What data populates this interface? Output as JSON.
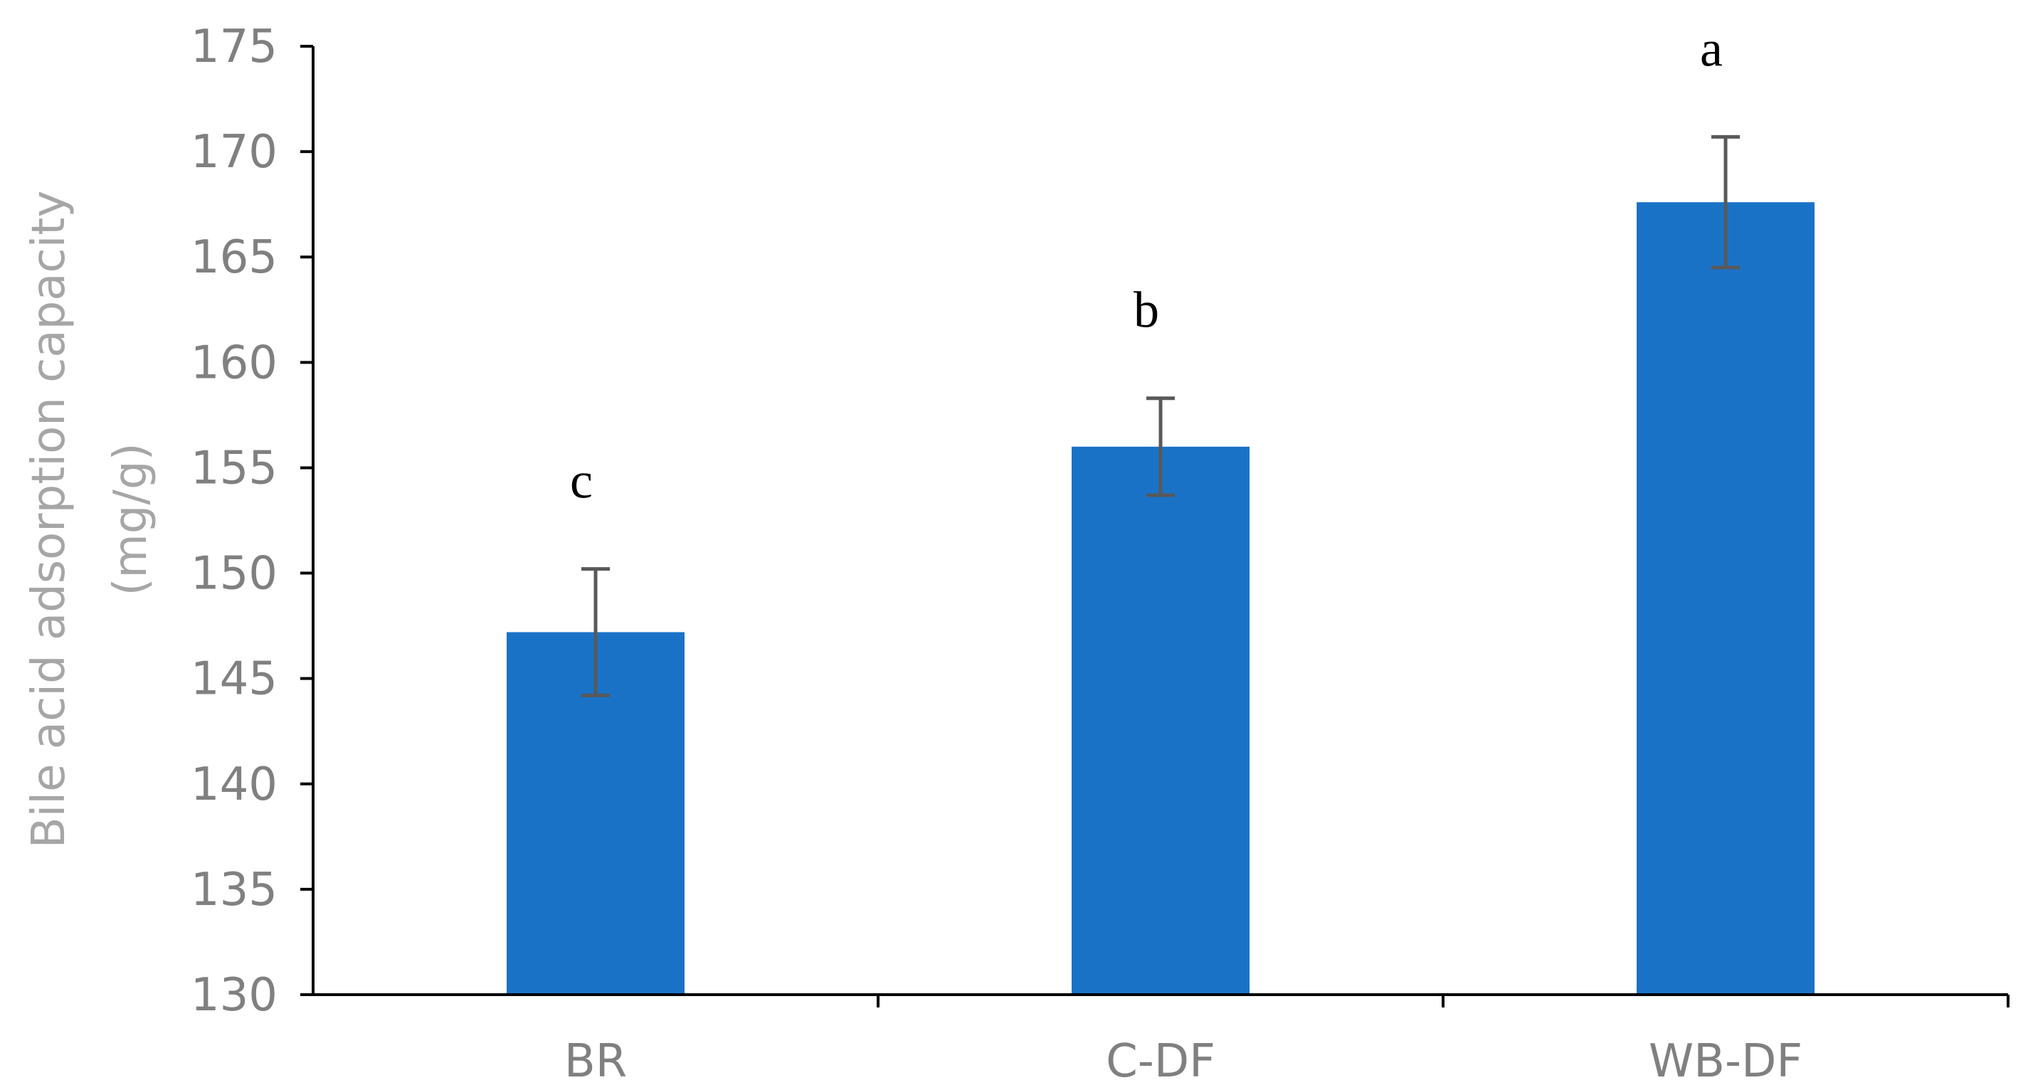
{
  "chart_data": {
    "type": "bar",
    "categories": [
      "BR",
      "C-DF",
      "WB-DF"
    ],
    "values": [
      147.2,
      156.0,
      167.6
    ],
    "error": [
      3.0,
      2.3,
      3.1
    ],
    "significance_labels": [
      "c",
      "b",
      "a"
    ],
    "title": "",
    "xlabel": "",
    "ylabel": [
      "Bile acid adsorption capacity",
      "(mg/g)"
    ],
    "ylim": [
      130,
      175
    ],
    "ytick_step": 5,
    "yticks": [
      "130",
      "135",
      "140",
      "145",
      "150",
      "155",
      "160",
      "165",
      "170",
      "175"
    ],
    "grid": false,
    "legend": "none",
    "bar_color": "#1a72c7",
    "error_color": "#595959",
    "axis_color": "#000000"
  }
}
